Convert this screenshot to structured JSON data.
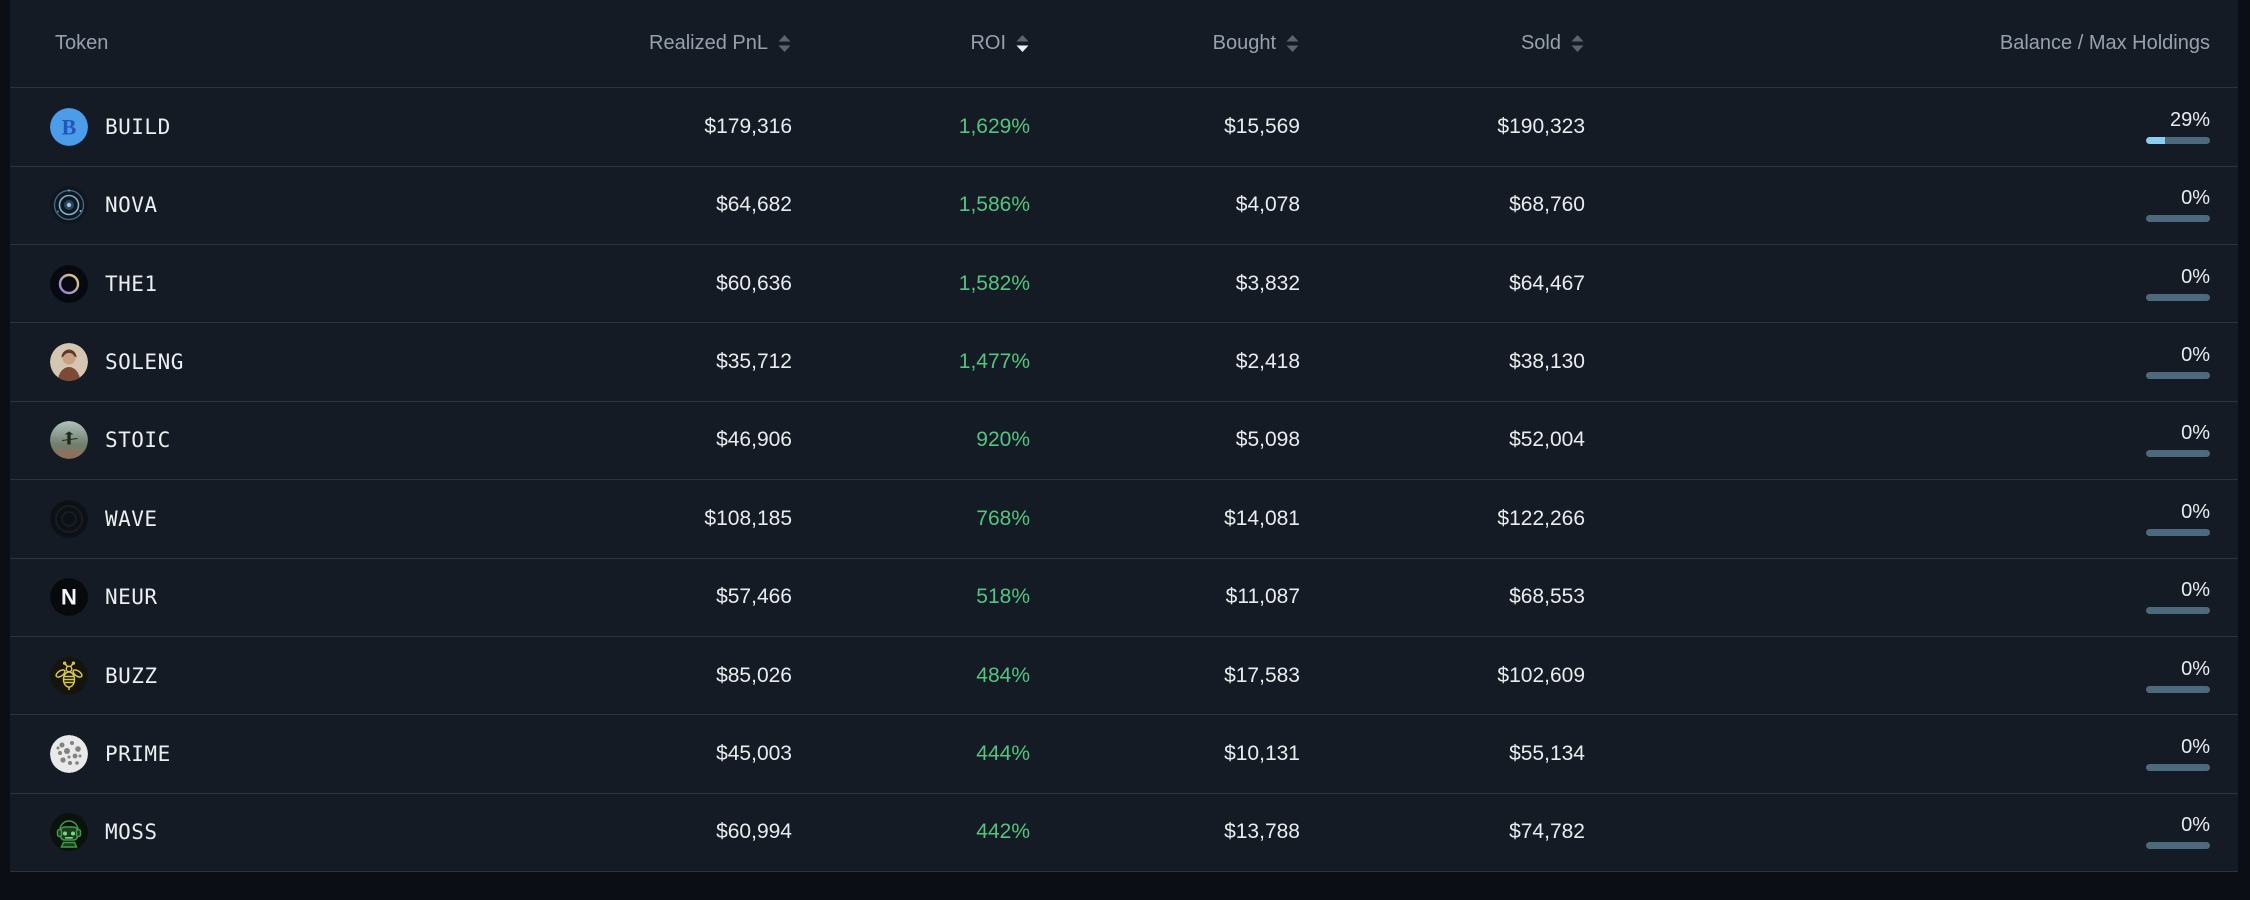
{
  "colors": {
    "page_bg": "#0b0f15",
    "panel_bg": "#151b24",
    "separator": "#2a3340",
    "header_text": "#97a1ae",
    "value_text": "#e9ecef",
    "roi_green": "#53c57e",
    "bar_track": "#4d6a7c",
    "bar_fill": "#8ccdf2",
    "sort_inactive": "#5b6470",
    "sort_active": "#eef1f4"
  },
  "table": {
    "columns": [
      {
        "key": "token",
        "label": "Token",
        "sortable": false,
        "sort": "none"
      },
      {
        "key": "realized_pnl",
        "label": "Realized PnL",
        "sortable": true,
        "sort": "none"
      },
      {
        "key": "roi",
        "label": "ROI",
        "sortable": true,
        "sort": "desc"
      },
      {
        "key": "bought",
        "label": "Bought",
        "sortable": true,
        "sort": "none"
      },
      {
        "key": "sold",
        "label": "Sold",
        "sortable": true,
        "sort": "none"
      },
      {
        "key": "balance",
        "label": "Balance / Max Holdings",
        "sortable": false,
        "sort": "none"
      }
    ],
    "rows": [
      {
        "token": "BUILD",
        "realized_pnl": "$179,316",
        "roi": "1,629%",
        "bought": "$15,569",
        "sold": "$190,323",
        "balance_label": "29%",
        "balance_pct": 29,
        "icon": {
          "kind": "letter",
          "bg": "#4b9ce9",
          "fg": "#2157b8",
          "text": "B",
          "font": "serif"
        }
      },
      {
        "token": "NOVA",
        "realized_pnl": "$64,682",
        "roi": "1,586%",
        "bought": "$4,078",
        "sold": "$68,760",
        "balance_label": "0%",
        "balance_pct": 0,
        "icon": {
          "kind": "ring",
          "bg": "#0e161f",
          "ring1": "#51799b",
          "ring2": "#86aec9",
          "core": "#27475e",
          "dot": "#9fc6dd"
        }
      },
      {
        "token": "THE1",
        "realized_pnl": "$60,636",
        "roi": "1,582%",
        "bought": "$3,832",
        "sold": "$64,467",
        "balance_label": "0%",
        "balance_pct": 0,
        "icon": {
          "kind": "phi",
          "bg": "#070910",
          "c1": "#8d7bf2",
          "c2": "#e6cf6b"
        }
      },
      {
        "token": "SOLENG",
        "realized_pnl": "$35,712",
        "roi": "1,477%",
        "bought": "$2,418",
        "sold": "$38,130",
        "balance_label": "0%",
        "balance_pct": 0,
        "icon": {
          "kind": "portrait",
          "bg": "#d5c6b2",
          "hair": "#7c4a36",
          "hairtop": "#5f3828",
          "skin": "#c9a184"
        }
      },
      {
        "token": "STOIC",
        "realized_pnl": "$46,906",
        "roi": "920%",
        "bought": "$5,098",
        "sold": "$52,004",
        "balance_label": "0%",
        "balance_pct": 0,
        "icon": {
          "kind": "landscape",
          "sky": "#b3c2ba",
          "ground": "#6f7f6e",
          "accent": "#9b6a55",
          "figure": "#23281f"
        }
      },
      {
        "token": "WAVE",
        "realized_pnl": "$108,185",
        "roi": "768%",
        "bought": "$14,081",
        "sold": "$122,266",
        "balance_label": "0%",
        "balance_pct": 0,
        "icon": {
          "kind": "disc",
          "bg": "#0d1116",
          "ring": "#171d24"
        }
      },
      {
        "token": "NEUR",
        "realized_pnl": "$57,466",
        "roi": "518%",
        "bought": "$11,087",
        "sold": "$68,553",
        "balance_label": "0%",
        "balance_pct": 0,
        "icon": {
          "kind": "letter",
          "bg": "#07090d",
          "fg": "#f2f5f8",
          "text": "N",
          "font": "sans"
        }
      },
      {
        "token": "BUZZ",
        "realized_pnl": "$85,026",
        "roi": "484%",
        "bought": "$17,583",
        "sold": "$102,609",
        "balance_label": "0%",
        "balance_pct": 0,
        "icon": {
          "kind": "bee",
          "bg": "#14150e",
          "stroke": "#d8c554"
        }
      },
      {
        "token": "PRIME",
        "realized_pnl": "$45,003",
        "roi": "444%",
        "bought": "$10,131",
        "sold": "$55,134",
        "balance_label": "0%",
        "balance_pct": 0,
        "icon": {
          "kind": "spots",
          "bg": "#e9e9e9",
          "spot": "#6f6f6f"
        }
      },
      {
        "token": "MOSS",
        "realized_pnl": "$60,994",
        "roi": "442%",
        "bought": "$13,788",
        "sold": "$74,782",
        "balance_label": "0%",
        "balance_pct": 0,
        "icon": {
          "kind": "robot",
          "bg": "#0b110b",
          "stroke": "#3f9a4d",
          "fill": "#1d3a1d",
          "eye": "#79d887"
        }
      }
    ]
  }
}
